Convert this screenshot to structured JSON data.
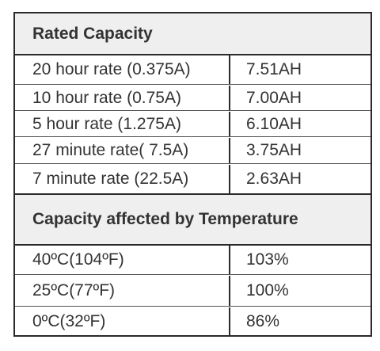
{
  "sections": [
    {
      "title": "Rated Capacity",
      "rows": [
        {
          "label": "20 hour rate (0.375A)",
          "value": "7.51AH"
        },
        {
          "label": "10 hour rate (0.75A)",
          "value": "7.00AH"
        },
        {
          "label": "5 hour rate (1.275A)",
          "value": "6.10AH"
        },
        {
          "label": "27 minute rate( 7.5A)",
          "value": "3.75AH"
        },
        {
          "label": "7 minute rate (22.5A)",
          "value": "2.63AH"
        }
      ]
    },
    {
      "title": "Capacity affected by Temperature",
      "rows": [
        {
          "label": "40ºC(104ºF)",
          "value": "103%"
        },
        {
          "label": "25ºC(77ºF)",
          "value": "100%"
        },
        {
          "label": "0ºC(32ºF)",
          "value": "86%"
        }
      ]
    }
  ]
}
